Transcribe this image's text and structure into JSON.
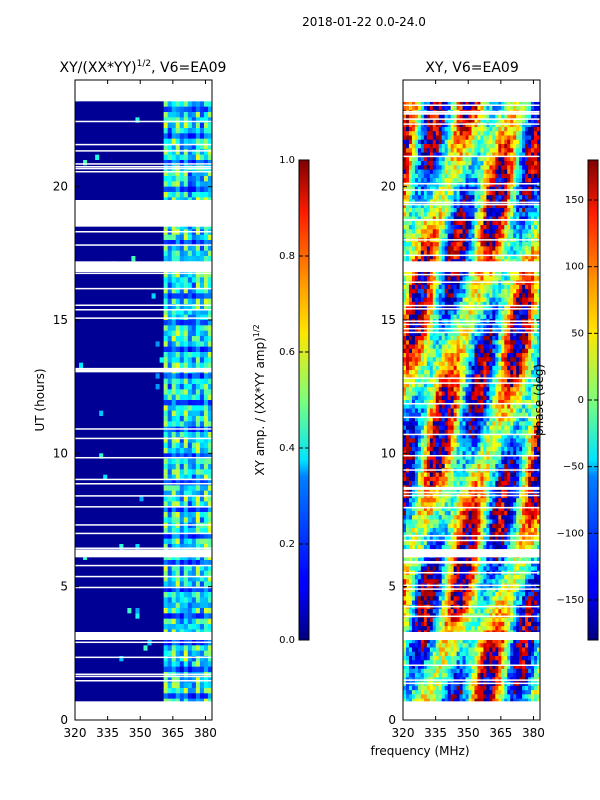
{
  "suptitle": "2018-01-22 0.0-24.0",
  "chart_data": [
    {
      "type": "heatmap",
      "title_main": "XY/(XX*YY)",
      "title_exp": "1/2",
      "title_rest": ", V6=EA09",
      "xlabel": "",
      "ylabel": "UT (hours)",
      "xticks": [
        "320",
        "335",
        "350",
        "365",
        "380"
      ],
      "xtick_values": [
        320,
        335,
        350,
        365,
        380
      ],
      "yticks": [
        "0",
        "5",
        "10",
        "15",
        "20"
      ],
      "ytick_values": [
        0,
        5,
        10,
        15,
        20
      ],
      "xlim": [
        320,
        383
      ],
      "ylim": [
        0,
        24
      ],
      "colorscale": "jet",
      "clim": [
        0.0,
        1.0
      ],
      "colorbar_label_main": "XY amp. / (XX*YY amp)",
      "colorbar_label_exp": "1/2",
      "colorbar_ticks": [
        "0.0",
        "0.2",
        "0.4",
        "0.6",
        "0.8",
        "1.0"
      ],
      "colorbar_tick_values": [
        0.0,
        0.2,
        0.4,
        0.6,
        0.8,
        1.0
      ],
      "description_values": {
        "background_amplitude": 0.02,
        "bright_band_mhz": [
          360,
          382
        ],
        "bright_band_amplitude": 0.55,
        "flagged_ut_ranges": [
          [
            0.0,
            0.7
          ],
          [
            3.0,
            3.3
          ],
          [
            6.1,
            6.4
          ],
          [
            16.8,
            17.2
          ],
          [
            18.5,
            19.5
          ],
          [
            23.2,
            24.0
          ]
        ]
      }
    },
    {
      "type": "heatmap",
      "title_main": "XY, V6=EA09",
      "xlabel": "frequency (MHz)",
      "ylabel": "",
      "xticks": [
        "320",
        "335",
        "350",
        "365",
        "380"
      ],
      "xtick_values": [
        320,
        335,
        350,
        365,
        380
      ],
      "yticks": [
        "0",
        "5",
        "10",
        "15",
        "20"
      ],
      "ytick_values": [
        0,
        5,
        10,
        15,
        20
      ],
      "xlim": [
        320,
        383
      ],
      "ylim": [
        0,
        24
      ],
      "colorscale": "jet",
      "clim": [
        -180,
        180
      ],
      "colorbar_label_main": "phase (deg)",
      "colorbar_ticks": [
        "−150",
        "−100",
        "−50",
        "0",
        "50",
        "100",
        "150"
      ],
      "colorbar_tick_values": [
        -150,
        -100,
        -50,
        0,
        50,
        100,
        150
      ],
      "description_values": {
        "phase_range_deg": [
          -180,
          180
        ],
        "flagged_ut_ranges": [
          [
            0.0,
            0.7
          ],
          [
            3.0,
            3.3
          ],
          [
            6.1,
            6.4
          ],
          [
            16.8,
            17.2
          ],
          [
            23.2,
            24.0
          ]
        ]
      }
    }
  ],
  "colors": {
    "axis": "#000000",
    "flag": "#ffffff"
  }
}
